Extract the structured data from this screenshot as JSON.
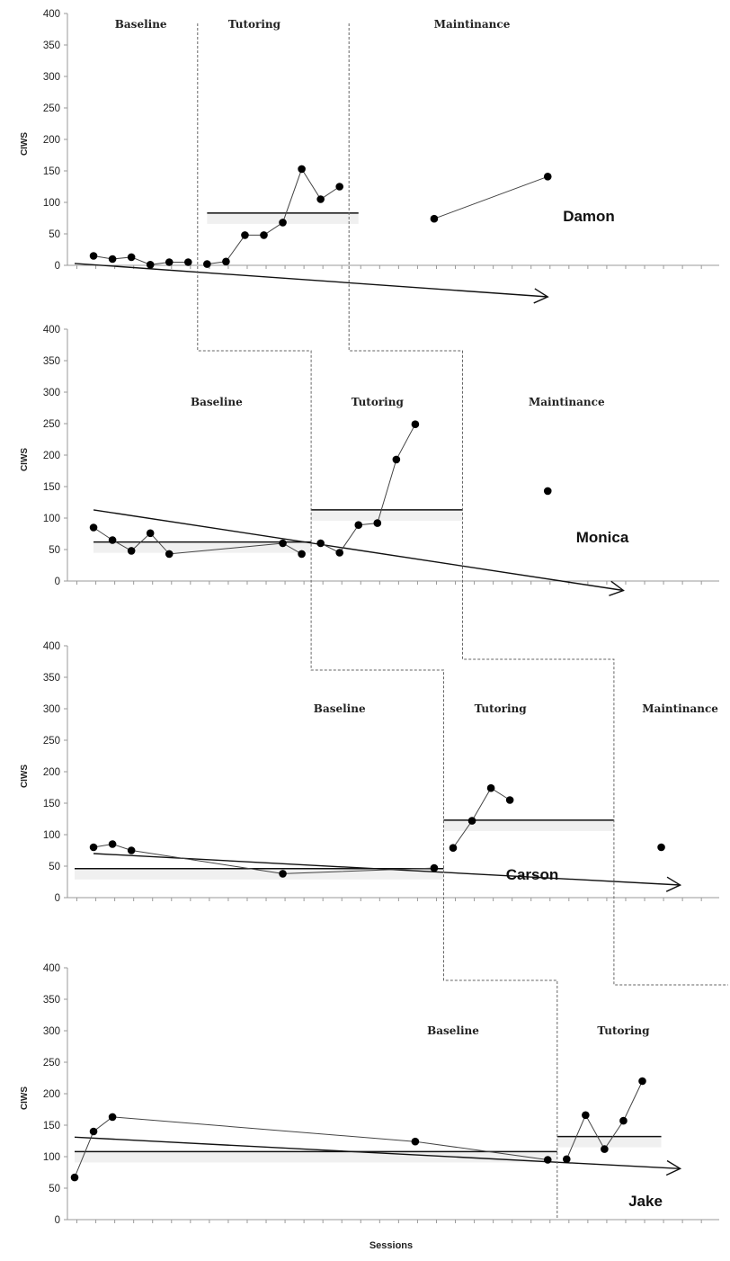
{
  "chart_data": {
    "type": "scatter",
    "y_axis_label": "CIWS",
    "x_axis_label": "Sessions",
    "ylim": [
      0,
      400
    ],
    "y_ticks": [
      0,
      50,
      100,
      150,
      200,
      250,
      300,
      350,
      400
    ],
    "phase_labels": {
      "baseline": "Baseline",
      "tutoring": "Tutoring",
      "maintenance": "Maintinance"
    },
    "panels": [
      {
        "student": "Damon",
        "segments": [
          [
            [
              1,
              15
            ],
            [
              2,
              10
            ],
            [
              3,
              13
            ],
            [
              4,
              1
            ],
            [
              5,
              5
            ],
            [
              6,
              5
            ]
          ],
          [
            [
              7,
              2
            ],
            [
              8,
              6
            ],
            [
              9,
              48
            ],
            [
              10,
              48
            ],
            [
              11,
              68
            ],
            [
              12,
              153
            ],
            [
              13,
              105
            ],
            [
              14,
              125
            ]
          ],
          [
            [
              19,
              74
            ],
            [
              25,
              141
            ]
          ]
        ],
        "mean_lines": [
          {
            "x0": 7,
            "x1": 15,
            "y": 83
          }
        ],
        "trend": {
          "x0": 0,
          "y0": 3,
          "x1": 25,
          "y1": -50
        },
        "phase_starts": {
          "tutoring": 6.5,
          "maintenance": 14.5
        },
        "phase_label_x": {
          "baseline": 3.5,
          "tutoring": 9.5,
          "maintenance": 21
        }
      },
      {
        "student": "Monica",
        "segments": [
          [
            [
              1,
              85
            ],
            [
              2,
              65
            ],
            [
              3,
              48
            ],
            [
              4,
              76
            ],
            [
              5,
              43
            ],
            [
              11,
              60
            ],
            [
              12,
              43
            ]
          ],
          [
            [
              13,
              60
            ],
            [
              14,
              45
            ],
            [
              15,
              89
            ],
            [
              16,
              92
            ],
            [
              17,
              193
            ],
            [
              18,
              249
            ]
          ],
          [
            [
              25,
              143
            ]
          ]
        ],
        "mean_lines": [
          {
            "x0": 1,
            "x1": 12.5,
            "y": 62
          },
          {
            "x0": 12.5,
            "x1": 20.5,
            "y": 113
          }
        ],
        "trend": {
          "x0": 1,
          "y0": 113,
          "x1": 29,
          "y1": -15
        },
        "phase_starts": {
          "tutoring": 12.5,
          "maintenance": 20.5
        },
        "phase_label_x": {
          "baseline": 7.5,
          "tutoring": 16,
          "maintenance": 26
        }
      },
      {
        "student": "Carson",
        "segments": [
          [
            [
              1,
              80
            ],
            [
              2,
              85
            ],
            [
              3,
              75
            ],
            [
              11,
              38
            ],
            [
              19,
              47
            ]
          ],
          [
            [
              20,
              79
            ],
            [
              21,
              122
            ],
            [
              22,
              174
            ],
            [
              23,
              155
            ]
          ],
          [
            [
              31,
              80
            ]
          ]
        ],
        "mean_lines": [
          {
            "x0": 0,
            "x1": 19.5,
            "y": 46
          },
          {
            "x0": 19.5,
            "x1": 28.5,
            "y": 123
          }
        ],
        "trend": {
          "x0": 1,
          "y0": 70,
          "x1": 32,
          "y1": 20
        },
        "phase_starts": {
          "tutoring": 19.5,
          "maintenance": 28.5
        },
        "phase_label_x": {
          "baseline": 14,
          "tutoring": 22.5,
          "maintenance": 32
        }
      },
      {
        "student": "Jake",
        "segments": [
          [
            [
              0,
              67
            ],
            [
              1,
              140
            ],
            [
              2,
              163
            ],
            [
              18,
              124
            ],
            [
              25,
              95
            ]
          ],
          [
            [
              26,
              96
            ],
            [
              27,
              166
            ],
            [
              28,
              112
            ],
            [
              29,
              157
            ],
            [
              30,
              220
            ]
          ]
        ],
        "mean_lines": [
          {
            "x0": 0,
            "x1": 25.5,
            "y": 108
          },
          {
            "x0": 25.5,
            "x1": 31,
            "y": 132
          }
        ],
        "trend": {
          "x0": 0,
          "y0": 131,
          "x1": 32,
          "y1": 81
        },
        "phase_starts": {
          "tutoring": 25.5
        },
        "phase_label_x": {
          "baseline": 20,
          "tutoring": 29
        }
      }
    ]
  }
}
